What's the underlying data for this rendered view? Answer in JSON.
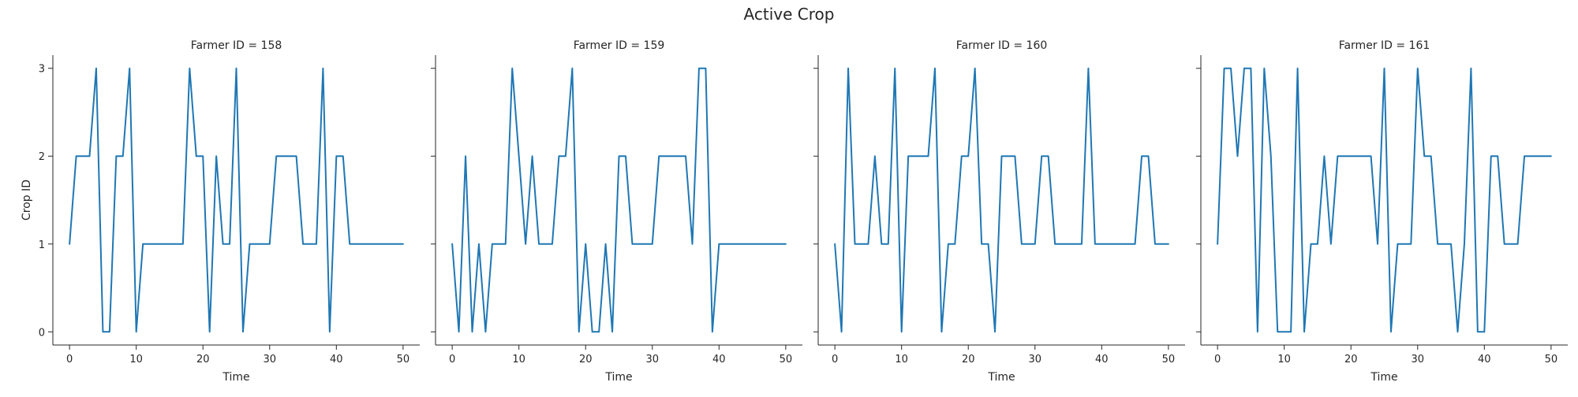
{
  "chart_data": {
    "type": "line",
    "title": "Active Crop",
    "xlabel": "Time",
    "ylabel": "Crop ID",
    "xlim": [
      -2.5,
      52.5
    ],
    "ylim": [
      -0.15,
      3.15
    ],
    "xticks": [
      0,
      10,
      20,
      30,
      40,
      50
    ],
    "yticks": [
      0,
      1,
      2,
      3
    ],
    "line_color": "#1f77b4",
    "grid": false,
    "panels": [
      {
        "title": "Farmer ID = 158",
        "x": [
          0,
          1,
          2,
          3,
          4,
          5,
          6,
          7,
          8,
          9,
          10,
          11,
          12,
          13,
          14,
          15,
          16,
          17,
          18,
          19,
          20,
          21,
          22,
          23,
          24,
          25,
          26,
          27,
          28,
          29,
          30,
          31,
          32,
          33,
          34,
          35,
          36,
          37,
          38,
          39,
          40,
          41,
          42,
          43,
          44,
          45,
          46,
          47,
          48,
          49,
          50
        ],
        "y": [
          1,
          2,
          2,
          2,
          3,
          0,
          0,
          2,
          2,
          3,
          0,
          1,
          1,
          1,
          1,
          1,
          1,
          1,
          3,
          2,
          2,
          0,
          2,
          1,
          1,
          3,
          0,
          1,
          1,
          1,
          1,
          2,
          2,
          2,
          2,
          1,
          1,
          1,
          3,
          0,
          2,
          2,
          1,
          1,
          1,
          1,
          1,
          1,
          1,
          1,
          1
        ]
      },
      {
        "title": "Farmer ID = 159",
        "x": [
          0,
          1,
          2,
          3,
          4,
          5,
          6,
          7,
          8,
          9,
          10,
          11,
          12,
          13,
          14,
          15,
          16,
          17,
          18,
          19,
          20,
          21,
          22,
          23,
          24,
          25,
          26,
          27,
          28,
          29,
          30,
          31,
          32,
          33,
          34,
          35,
          36,
          37,
          38,
          39,
          40,
          41,
          42,
          43,
          44,
          45,
          46,
          47,
          48,
          49,
          50
        ],
        "y": [
          1,
          0,
          2,
          0,
          1,
          0,
          1,
          1,
          1,
          3,
          2,
          1,
          2,
          1,
          1,
          1,
          2,
          2,
          3,
          0,
          1,
          0,
          0,
          1,
          0,
          2,
          2,
          1,
          1,
          1,
          1,
          2,
          2,
          2,
          2,
          2,
          1,
          3,
          3,
          0,
          1,
          1,
          1,
          1,
          1,
          1,
          1,
          1,
          1,
          1,
          1
        ]
      },
      {
        "title": "Farmer ID = 160",
        "x": [
          0,
          1,
          2,
          3,
          4,
          5,
          6,
          7,
          8,
          9,
          10,
          11,
          12,
          13,
          14,
          15,
          16,
          17,
          18,
          19,
          20,
          21,
          22,
          23,
          24,
          25,
          26,
          27,
          28,
          29,
          30,
          31,
          32,
          33,
          34,
          35,
          36,
          37,
          38,
          39,
          40,
          41,
          42,
          43,
          44,
          45,
          46,
          47,
          48,
          49,
          50
        ],
        "y": [
          1,
          0,
          3,
          1,
          1,
          1,
          2,
          1,
          1,
          3,
          0,
          2,
          2,
          2,
          2,
          3,
          0,
          1,
          1,
          2,
          2,
          3,
          1,
          1,
          0,
          2,
          2,
          2,
          1,
          1,
          1,
          2,
          2,
          1,
          1,
          1,
          1,
          1,
          3,
          1,
          1,
          1,
          1,
          1,
          1,
          1,
          2,
          2,
          1,
          1,
          1
        ]
      },
      {
        "title": "Farmer ID = 161",
        "x": [
          0,
          1,
          2,
          3,
          4,
          5,
          6,
          7,
          8,
          9,
          10,
          11,
          12,
          13,
          14,
          15,
          16,
          17,
          18,
          19,
          20,
          21,
          22,
          23,
          24,
          25,
          26,
          27,
          28,
          29,
          30,
          31,
          32,
          33,
          34,
          35,
          36,
          37,
          38,
          39,
          40,
          41,
          42,
          43,
          44,
          45,
          46,
          47,
          48,
          49,
          50
        ],
        "y": [
          1,
          3,
          3,
          2,
          3,
          3,
          0,
          3,
          2,
          0,
          0,
          0,
          3,
          0,
          1,
          1,
          2,
          1,
          2,
          2,
          2,
          2,
          2,
          2,
          1,
          3,
          0,
          1,
          1,
          1,
          3,
          2,
          2,
          1,
          1,
          1,
          0,
          1,
          3,
          0,
          0,
          2,
          2,
          1,
          1,
          1,
          2,
          2,
          2,
          2,
          2
        ]
      }
    ]
  }
}
